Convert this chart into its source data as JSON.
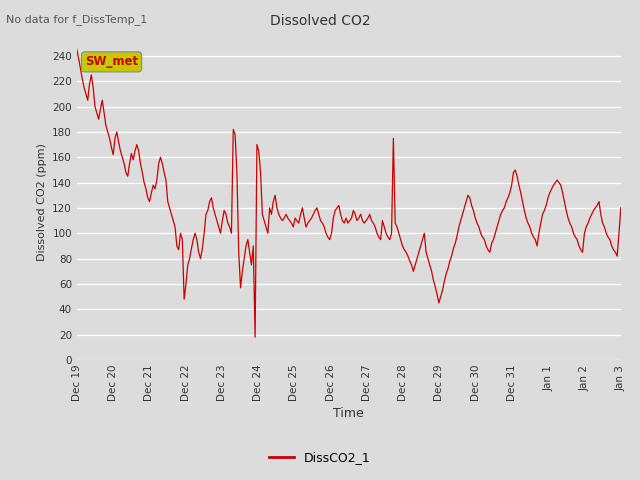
{
  "title": "Dissolved CO2",
  "subtitle": "No data for f_DissTemp_1",
  "ylabel": "Dissolved CO2 (ppm)",
  "xlabel": "Time",
  "legend_label": "DissCO2_1",
  "legend_color": "#cc0000",
  "line_color": "#cc0000",
  "background_color": "#dcdcdc",
  "plot_bg_color": "#dcdcdc",
  "ylim": [
    0,
    250
  ],
  "yticks": [
    0,
    20,
    40,
    60,
    80,
    100,
    120,
    140,
    160,
    180,
    200,
    220,
    240
  ],
  "sw_met_label": "SW_met",
  "sw_met_bg": "#c8c800",
  "sw_met_text_color": "#cc0000",
  "x_tick_labels": [
    "Dec 19",
    "Dec 20",
    "Dec 21",
    "Dec 22",
    "Dec 23",
    "Dec 24",
    "Dec 25",
    "Dec 26",
    "Dec 27",
    "Dec 28",
    "Dec 29",
    "Dec 30",
    "Dec 31",
    "Jan 1",
    "Jan 2",
    "Jan 3"
  ],
  "data_y": [
    245,
    238,
    230,
    222,
    215,
    210,
    205,
    218,
    225,
    215,
    200,
    195,
    190,
    198,
    205,
    195,
    185,
    180,
    175,
    168,
    162,
    175,
    180,
    172,
    165,
    160,
    155,
    148,
    145,
    155,
    163,
    158,
    165,
    170,
    165,
    155,
    148,
    140,
    135,
    128,
    125,
    132,
    138,
    135,
    142,
    155,
    160,
    155,
    148,
    142,
    125,
    120,
    115,
    110,
    105,
    90,
    87,
    100,
    95,
    48,
    60,
    75,
    80,
    88,
    95,
    100,
    95,
    85,
    80,
    88,
    100,
    115,
    118,
    125,
    128,
    120,
    115,
    110,
    105,
    100,
    110,
    118,
    115,
    108,
    105,
    100,
    182,
    178,
    148,
    85,
    57,
    70,
    80,
    90,
    95,
    85,
    75,
    90,
    18,
    170,
    165,
    148,
    115,
    110,
    105,
    100,
    120,
    115,
    125,
    130,
    120,
    115,
    112,
    110,
    112,
    115,
    112,
    110,
    108,
    105,
    112,
    110,
    108,
    115,
    120,
    112,
    105,
    108,
    110,
    112,
    115,
    118,
    120,
    115,
    110,
    108,
    105,
    100,
    97,
    95,
    100,
    112,
    118,
    120,
    122,
    115,
    110,
    108,
    112,
    108,
    110,
    112,
    118,
    115,
    110,
    112,
    115,
    110,
    108,
    110,
    112,
    115,
    110,
    108,
    105,
    100,
    97,
    95,
    110,
    105,
    100,
    97,
    95,
    100,
    175,
    108,
    105,
    100,
    95,
    90,
    87,
    85,
    82,
    78,
    75,
    70,
    75,
    80,
    85,
    90,
    95,
    100,
    85,
    80,
    75,
    70,
    63,
    58,
    52,
    45,
    50,
    55,
    62,
    68,
    72,
    78,
    82,
    88,
    92,
    98,
    105,
    110,
    115,
    120,
    125,
    130,
    128,
    122,
    118,
    112,
    108,
    105,
    100,
    97,
    95,
    90,
    87,
    85,
    92,
    95,
    100,
    105,
    110,
    115,
    118,
    120,
    125,
    128,
    132,
    138,
    148,
    150,
    145,
    138,
    132,
    125,
    118,
    112,
    108,
    105,
    100,
    97,
    95,
    90,
    100,
    108,
    115,
    118,
    122,
    128,
    132,
    135,
    138,
    140,
    142,
    140,
    138,
    132,
    125,
    118,
    112,
    108,
    105,
    100,
    97,
    95,
    90,
    87,
    85,
    100,
    105,
    108,
    112,
    115,
    118,
    120,
    122,
    125,
    115,
    108,
    105,
    100,
    97,
    95,
    90,
    87,
    85,
    82,
    100,
    120
  ]
}
